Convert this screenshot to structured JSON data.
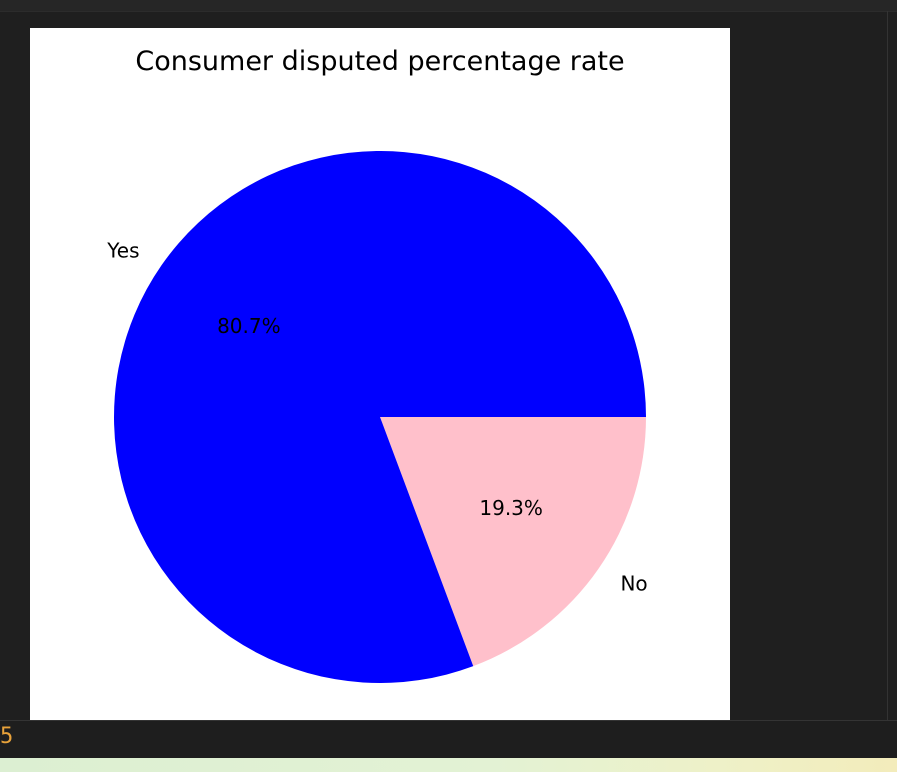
{
  "chart_data": {
    "type": "pie",
    "title": "Consumer disputed percentage rate",
    "slices": [
      {
        "label": "No",
        "value": 19.3,
        "pct_label": "19.3%",
        "color": "#ffc0cb"
      },
      {
        "label": "Yes",
        "value": 80.7,
        "pct_label": "80.7%",
        "color": "#0000ff"
      }
    ],
    "start_angle_deg": 0,
    "direction": "clockwise"
  },
  "output": {
    "marker": "5"
  }
}
